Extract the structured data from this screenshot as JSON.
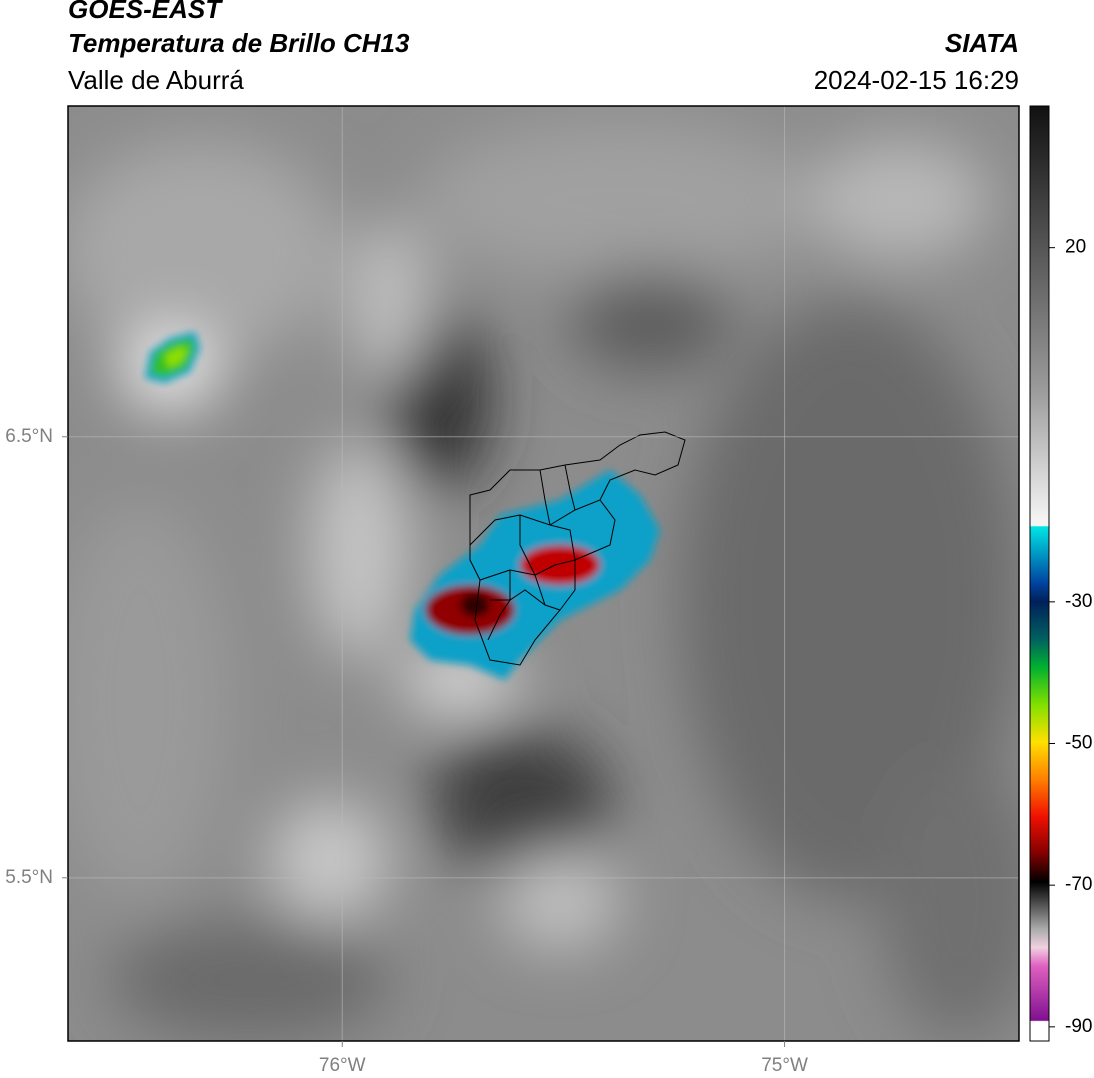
{
  "header": {
    "title": "GOES-EAST",
    "subtitle": "Temperatura de Brillo CH13",
    "region": "Valle de Aburrá",
    "source": "SIATA",
    "datetime": "2024-02-15 16:29"
  },
  "map": {
    "lonlim": [
      -76.62,
      -74.47
    ],
    "latlim": [
      5.13,
      7.25
    ],
    "lon_ticks": [
      {
        "value": -76,
        "label": "76°W"
      },
      {
        "value": -75,
        "label": "75°W"
      }
    ],
    "lat_ticks": [
      {
        "value": 6.5,
        "label": "6.5°N"
      },
      {
        "value": 5.5,
        "label": "5.5°N"
      }
    ],
    "grid": true
  },
  "colorbar": {
    "lim": [
      -92,
      40
    ],
    "ticks": [
      20,
      -30,
      -50,
      -70,
      -90
    ]
  }
}
